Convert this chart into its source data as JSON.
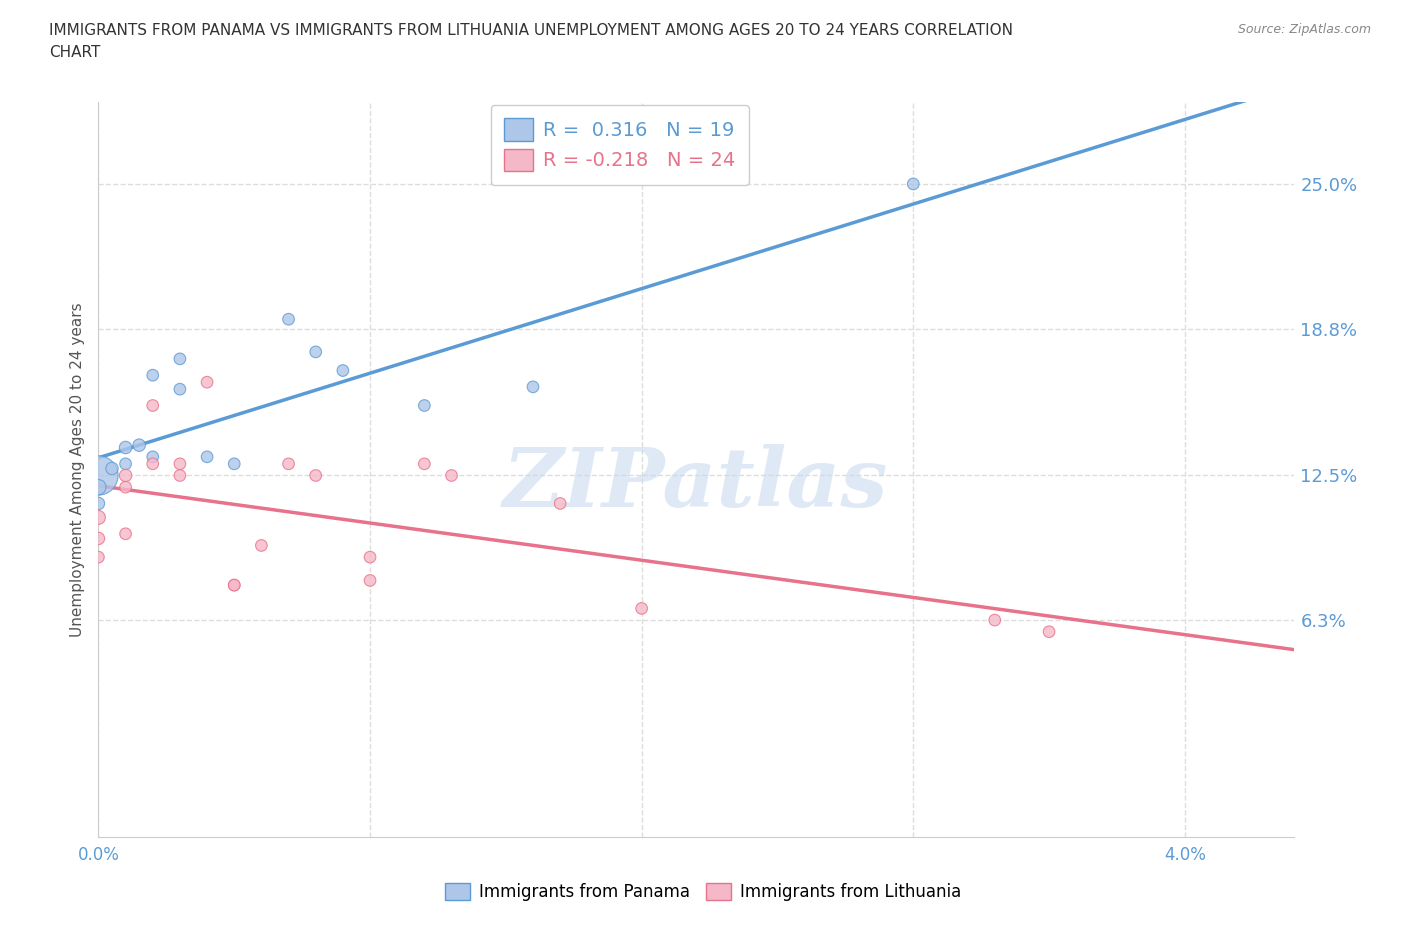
{
  "title_line1": "IMMIGRANTS FROM PANAMA VS IMMIGRANTS FROM LITHUANIA UNEMPLOYMENT AMONG AGES 20 TO 24 YEARS CORRELATION",
  "title_line2": "CHART",
  "source": "Source: ZipAtlas.com",
  "ylabel_label": "Unemployment Among Ages 20 to 24 years",
  "yticks": [
    0.063,
    0.125,
    0.188,
    0.25
  ],
  "ytick_labels": [
    "6.3%",
    "12.5%",
    "18.8%",
    "25.0%"
  ],
  "xtick_positions": [
    0.0,
    0.01,
    0.02,
    0.03,
    0.04
  ],
  "xlim": [
    0.0,
    0.044
  ],
  "ylim": [
    -0.03,
    0.285
  ],
  "panama_color": "#aec6e8",
  "panama_color_dark": "#5b9bd5",
  "lithuania_color": "#f4b8c8",
  "lithuania_color_dark": "#e8728a",
  "panama_R": 0.316,
  "panama_N": 19,
  "lithuania_R": -0.218,
  "lithuania_N": 24,
  "panama_x": [
    0.0,
    0.0,
    0.0,
    0.0005,
    0.001,
    0.001,
    0.0015,
    0.002,
    0.002,
    0.003,
    0.003,
    0.004,
    0.005,
    0.007,
    0.008,
    0.009,
    0.012,
    0.016,
    0.03
  ],
  "panama_y": [
    0.125,
    0.12,
    0.113,
    0.128,
    0.137,
    0.13,
    0.138,
    0.133,
    0.168,
    0.175,
    0.162,
    0.133,
    0.13,
    0.192,
    0.178,
    0.17,
    0.155,
    0.163,
    0.25
  ],
  "lithuania_x": [
    0.0,
    0.0,
    0.0,
    0.001,
    0.001,
    0.001,
    0.002,
    0.002,
    0.003,
    0.003,
    0.004,
    0.005,
    0.005,
    0.006,
    0.007,
    0.008,
    0.01,
    0.01,
    0.012,
    0.013,
    0.017,
    0.02,
    0.033,
    0.035
  ],
  "lithuania_y": [
    0.107,
    0.098,
    0.09,
    0.125,
    0.12,
    0.1,
    0.155,
    0.13,
    0.13,
    0.125,
    0.165,
    0.078,
    0.078,
    0.095,
    0.13,
    0.125,
    0.08,
    0.09,
    0.13,
    0.125,
    0.113,
    0.068,
    0.063,
    0.058
  ],
  "panama_sizes": [
    800,
    120,
    80,
    80,
    80,
    70,
    80,
    70,
    70,
    70,
    70,
    70,
    70,
    70,
    70,
    70,
    70,
    70,
    70
  ],
  "lithuania_sizes": [
    100,
    80,
    70,
    80,
    70,
    70,
    70,
    70,
    70,
    70,
    70,
    70,
    70,
    70,
    70,
    70,
    70,
    70,
    70,
    70,
    70,
    70,
    70,
    70
  ],
  "watermark_text": "ZIPatlas",
  "background_color": "#ffffff",
  "grid_color": "#dddddd",
  "legend_r_panama": "R =  0.316   N = 19",
  "legend_r_lithuania": "R = -0.218   N = 24"
}
